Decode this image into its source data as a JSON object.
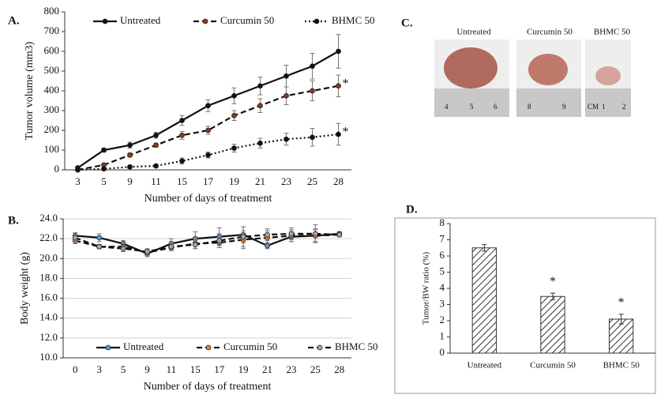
{
  "chart_data": [
    {
      "type": "line",
      "label": "A.",
      "x_label": "Number of days of treatment",
      "y_label": "Tumor volume (mm3)",
      "categories": [
        "3",
        "5",
        "9",
        "11",
        "15",
        "17",
        "19",
        "21",
        "23",
        "25",
        "28"
      ],
      "series": [
        {
          "name": "Untreated",
          "color": "#111111",
          "marker_color": "#111111",
          "dash": "solid",
          "values": [
            10,
            100,
            125,
            175,
            250,
            325,
            375,
            425,
            475,
            525,
            600
          ],
          "errors": [
            8,
            10,
            15,
            15,
            25,
            30,
            40,
            45,
            55,
            65,
            85
          ]
        },
        {
          "name": "Curcumin 50",
          "color": "#111111",
          "marker_color": "#8b3a1a",
          "dash": "dashed",
          "values": [
            0,
            25,
            75,
            125,
            175,
            200,
            275,
            325,
            375,
            400,
            425
          ],
          "errors": [
            4,
            5,
            10,
            10,
            20,
            20,
            25,
            35,
            45,
            50,
            55
          ],
          "end_label": "*"
        },
        {
          "name": "BHMC 50",
          "color": "#111111",
          "marker_color": "#111111",
          "dash": "dotted",
          "values": [
            0,
            5,
            15,
            20,
            45,
            75,
            110,
            135,
            155,
            165,
            180
          ],
          "errors": [
            3,
            3,
            8,
            8,
            15,
            15,
            20,
            25,
            30,
            45,
            55
          ],
          "end_label": "*"
        }
      ],
      "ylim": [
        0,
        800
      ],
      "yticks": [
        0,
        100,
        200,
        300,
        400,
        500,
        600,
        700,
        800
      ],
      "grid": false,
      "legend": "top"
    },
    {
      "type": "line",
      "label": "B.",
      "x_label": "Number of days of treatment",
      "y_label": "Body weight (g)",
      "categories": [
        "0",
        "3",
        "5",
        "9",
        "11",
        "15",
        "17",
        "19",
        "21",
        "23",
        "25",
        "28"
      ],
      "series": [
        {
          "name": "Untreated",
          "color": "#111111",
          "marker_color": "#5b9bd5",
          "dash": "solid",
          "values": [
            22.3,
            22.1,
            21.5,
            20.5,
            21.5,
            22.0,
            22.2,
            22.4,
            21.3,
            22.2,
            22.3,
            22.5
          ],
          "errors": [
            0.3,
            0.4,
            0.3,
            0.3,
            0.5,
            0.7,
            0.9,
            0.8,
            0.3,
            0.5,
            0.6,
            0.2
          ]
        },
        {
          "name": "Curcumin 50",
          "color": "#111111",
          "marker_color": "#ed7d31",
          "dash": "dashed",
          "values": [
            21.8,
            21.2,
            21.2,
            20.6,
            21.1,
            21.5,
            21.6,
            21.9,
            22.1,
            22.3,
            22.3,
            22.4
          ],
          "errors": [
            0.3,
            0.2,
            0.3,
            0.3,
            0.3,
            0.5,
            0.5,
            0.9,
            0.7,
            0.6,
            0.7,
            0.2
          ]
        },
        {
          "name": "BHMC 50",
          "color": "#111111",
          "marker_color": "#a6a6a6",
          "dash": "dashed",
          "values": [
            22.1,
            21.2,
            21.0,
            20.7,
            21.2,
            21.4,
            21.8,
            22.2,
            22.4,
            22.5,
            22.5,
            22.4
          ],
          "errors": [
            0.3,
            0.2,
            0.3,
            0.3,
            0.3,
            0.4,
            0.7,
            1.0,
            0.6,
            0.6,
            0.9,
            0.2
          ]
        }
      ],
      "ylim": [
        10,
        24
      ],
      "yticks": [
        {
          "value": 10,
          "label": "10.0"
        },
        {
          "value": 12,
          "label": "12.0"
        },
        {
          "value": 14,
          "label": "14.0"
        },
        {
          "value": 16,
          "label": "16.0"
        },
        {
          "value": 18,
          "label": "18.0"
        },
        {
          "value": 20,
          "label": "20.0"
        },
        {
          "value": 22,
          "label": "22.0"
        },
        {
          "value": 24,
          "label": "24.0"
        }
      ],
      "grid": true,
      "legend": "bottom"
    },
    {
      "type": "bar",
      "label": "D.",
      "y_label": "Tumor/BW ratio (%)",
      "categories": [
        "Untreated",
        "Curcumin 50",
        "BHMC 50"
      ],
      "values": [
        6.5,
        3.5,
        2.1
      ],
      "errors": [
        0.2,
        0.2,
        0.3
      ],
      "markers": [
        null,
        "*",
        "*"
      ],
      "color": "#333333",
      "pattern": "hatched",
      "ylim": [
        0,
        8
      ],
      "yticks": [
        0,
        1,
        2,
        3,
        4,
        5,
        6,
        7,
        8
      ],
      "grid": false
    }
  ],
  "photos": {
    "label": "C.",
    "captions": [
      "Untreated",
      "Curcumin 50",
      "BHMC 50"
    ],
    "ruler_labels": [
      [
        "4",
        "5",
        "6"
      ],
      [
        "8",
        "9"
      ],
      [
        "CM",
        "1",
        "2"
      ]
    ]
  }
}
